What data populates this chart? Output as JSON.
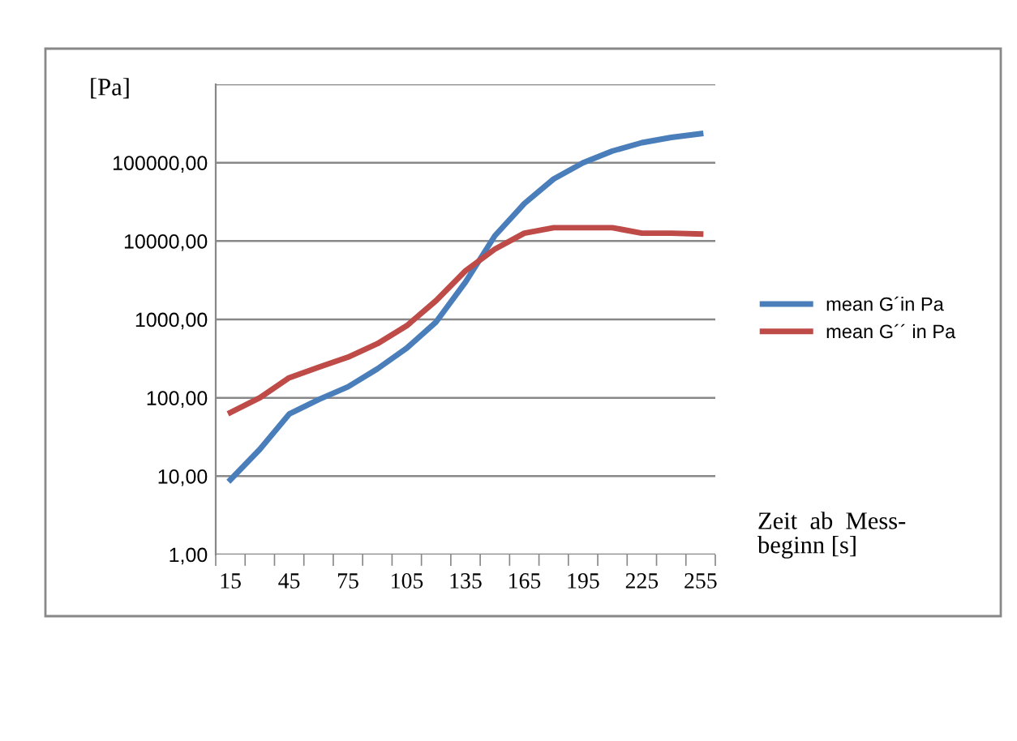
{
  "chart_data": {
    "type": "line",
    "ylabel": "[Pa]",
    "xlabel": "Zeit  ab  Mess-\nbeginn [s]",
    "categories": [
      "15",
      null,
      "45",
      null,
      "75",
      null,
      "105",
      null,
      "135",
      null,
      "165",
      null,
      "195",
      null,
      "225",
      null,
      "255"
    ],
    "series": [
      {
        "name": "mean G´in Pa",
        "color": "#4a7ebb",
        "values": [
          9,
          22,
          62,
          95,
          138,
          234,
          430,
          930,
          3000,
          11700,
          30000,
          62000,
          100000,
          141000,
          180000,
          210000,
          234000
        ]
      },
      {
        "name": "mean G´´ in Pa",
        "color": "#be4b48",
        "values": [
          65,
          100,
          180,
          245,
          330,
          490,
          830,
          1740,
          4170,
          7900,
          12600,
          14800,
          14800,
          14800,
          12600,
          12600,
          12300
        ]
      }
    ],
    "log": "y",
    "ylim": [
      1,
      1000000
    ],
    "yticks": [
      {
        "value": 1,
        "label": "1,00"
      },
      {
        "value": 10,
        "label": "10,00"
      },
      {
        "value": 100,
        "label": "100,00"
      },
      {
        "value": 1000,
        "label": "1000,00"
      },
      {
        "value": 10000,
        "label": "10000,00"
      },
      {
        "value": 100000,
        "label": "100000,00"
      },
      {
        "value": 1000000,
        "label": null
      }
    ],
    "grid": "y",
    "legend": "right",
    "marker": "none",
    "line_style": "solid"
  }
}
